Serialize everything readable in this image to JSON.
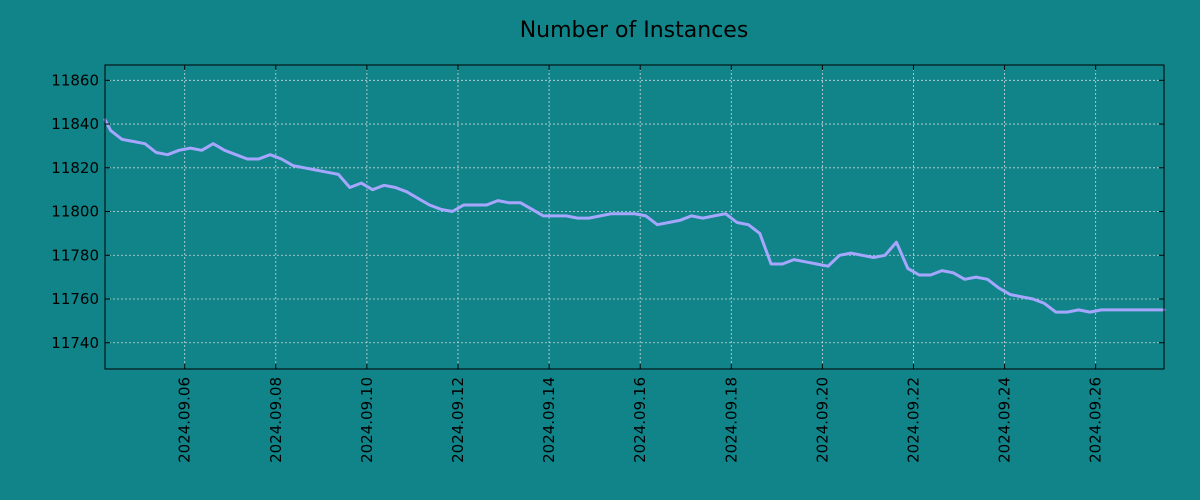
{
  "chart_data": {
    "type": "line",
    "title": "Number of Instances",
    "xlabel": "",
    "ylabel": "",
    "x_range": [
      "2024-09-04 06:00",
      "2024-09-27 12:00"
    ],
    "ylim": [
      11728,
      11867
    ],
    "grid": true,
    "x_ticks": [
      "2024.09.06",
      "2024.09.08",
      "2024.09.10",
      "2024.09.12",
      "2024.09.14",
      "2024.09.16",
      "2024.09.18",
      "2024.09.20",
      "2024.09.22",
      "2024.09.24",
      "2024.09.26"
    ],
    "y_ticks": [
      11740,
      11760,
      11780,
      11800,
      11820,
      11840,
      11860
    ],
    "series": [
      {
        "color": "#a6a6ff",
        "x": [
          "2024-09-04 06:00",
          "2024-09-04 09:00",
          "2024-09-04 15:00",
          "2024-09-04 21:00",
          "2024-09-05 03:00",
          "2024-09-05 09:00",
          "2024-09-05 15:00",
          "2024-09-05 21:00",
          "2024-09-06 03:00",
          "2024-09-06 09:00",
          "2024-09-06 15:00",
          "2024-09-06 21:00",
          "2024-09-07 03:00",
          "2024-09-07 09:00",
          "2024-09-07 15:00",
          "2024-09-07 21:00",
          "2024-09-08 03:00",
          "2024-09-08 09:00",
          "2024-09-08 15:00",
          "2024-09-08 21:00",
          "2024-09-09 03:00",
          "2024-09-09 09:00",
          "2024-09-09 15:00",
          "2024-09-09 21:00",
          "2024-09-10 03:00",
          "2024-09-10 09:00",
          "2024-09-10 15:00",
          "2024-09-10 21:00",
          "2024-09-11 03:00",
          "2024-09-11 09:00",
          "2024-09-11 15:00",
          "2024-09-11 21:00",
          "2024-09-12 03:00",
          "2024-09-12 09:00",
          "2024-09-12 15:00",
          "2024-09-12 21:00",
          "2024-09-13 03:00",
          "2024-09-13 09:00",
          "2024-09-13 15:00",
          "2024-09-13 21:00",
          "2024-09-14 03:00",
          "2024-09-14 09:00",
          "2024-09-14 15:00",
          "2024-09-14 21:00",
          "2024-09-15 03:00",
          "2024-09-15 09:00",
          "2024-09-15 15:00",
          "2024-09-15 21:00",
          "2024-09-16 03:00",
          "2024-09-16 09:00",
          "2024-09-16 15:00",
          "2024-09-16 21:00",
          "2024-09-17 03:00",
          "2024-09-17 09:00",
          "2024-09-17 15:00",
          "2024-09-17 21:00",
          "2024-09-18 03:00",
          "2024-09-18 09:00",
          "2024-09-18 15:00",
          "2024-09-18 21:00",
          "2024-09-19 03:00",
          "2024-09-19 09:00",
          "2024-09-19 15:00",
          "2024-09-19 21:00",
          "2024-09-20 03:00",
          "2024-09-20 09:00",
          "2024-09-20 15:00",
          "2024-09-20 21:00",
          "2024-09-21 03:00",
          "2024-09-21 09:00",
          "2024-09-21 15:00",
          "2024-09-21 21:00",
          "2024-09-22 03:00",
          "2024-09-22 09:00",
          "2024-09-22 15:00",
          "2024-09-22 21:00",
          "2024-09-23 03:00",
          "2024-09-23 09:00",
          "2024-09-23 15:00",
          "2024-09-23 21:00",
          "2024-09-24 03:00",
          "2024-09-24 09:00",
          "2024-09-24 15:00",
          "2024-09-24 21:00",
          "2024-09-25 03:00",
          "2024-09-25 09:00",
          "2024-09-25 15:00",
          "2024-09-25 21:00",
          "2024-09-26 03:00",
          "2024-09-26 09:00",
          "2024-09-26 15:00",
          "2024-09-26 21:00",
          "2024-09-27 03:00",
          "2024-09-27 09:00",
          "2024-09-27 12:00"
        ],
        "y": [
          11842,
          11837,
          11833,
          11832,
          11831,
          11827,
          11826,
          11828,
          11829,
          11828,
          11831,
          11828,
          11826,
          11824,
          11824,
          11826,
          11824,
          11821,
          11820,
          11819,
          11818,
          11817,
          11811,
          11813,
          11810,
          11812,
          11811,
          11809,
          11806,
          11803,
          11801,
          11800,
          11803,
          11803,
          11803,
          11805,
          11804,
          11804,
          11801,
          11798,
          11798,
          11798,
          11797,
          11797,
          11798,
          11799,
          11799,
          11799,
          11798,
          11794,
          11795,
          11796,
          11798,
          11797,
          11798,
          11799,
          11795,
          11794,
          11790,
          11776,
          11776,
          11778,
          11777,
          11776,
          11775,
          11780,
          11781,
          11780,
          11779,
          11780,
          11786,
          11774,
          11771,
          11771,
          11773,
          11772,
          11769,
          11770,
          11769,
          11765,
          11762,
          11761,
          11760,
          11758,
          11754,
          11754,
          11755,
          11754,
          11755,
          11755,
          11755,
          11755,
          11755,
          11755,
          11755
        ]
      }
    ]
  }
}
